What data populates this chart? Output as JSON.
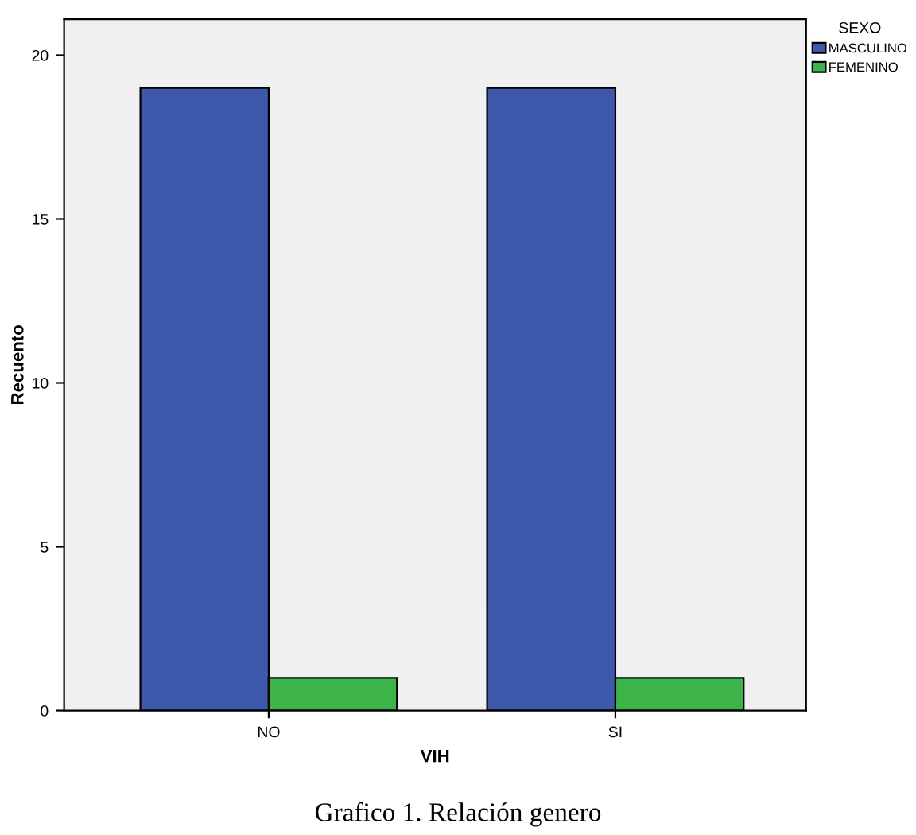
{
  "chart_data": {
    "type": "bar",
    "xlabel": "VIH",
    "ylabel": "Recuento",
    "legend_title": "SEXO",
    "categories": [
      "NO",
      "SI"
    ],
    "series": [
      {
        "name": "MASCULINO",
        "color": "#3e58ac",
        "values": [
          19,
          19
        ]
      },
      {
        "name": "FEMENINO",
        "color": "#3cb44a",
        "values": [
          1,
          1
        ]
      }
    ],
    "ylim": [
      0,
      21.1
    ],
    "yticks": [
      0,
      5,
      10,
      15,
      20
    ],
    "grid": false,
    "legend": "top right",
    "annotations": [
      "Grafico 1. Relación genero"
    ]
  }
}
